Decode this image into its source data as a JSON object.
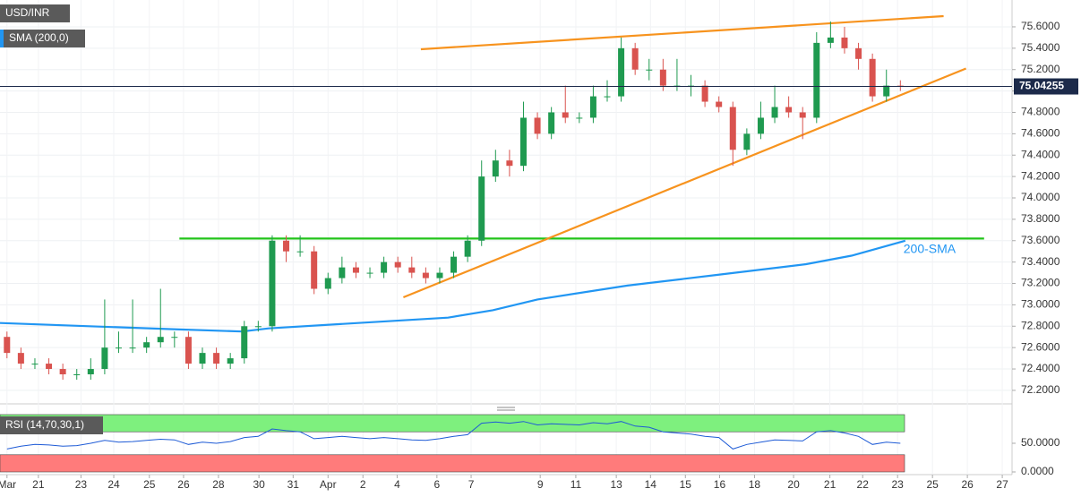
{
  "chart_data": [
    {
      "type": "candlestick",
      "title": "USD/INR",
      "indicator_label": "SMA (200,0)",
      "up_color": "#1f9a50",
      "down_color": "#d9534f",
      "candles": [
        [
          1,
          72.7,
          72.75,
          72.5,
          72.55
        ],
        [
          3,
          72.55,
          72.6,
          72.4,
          72.45
        ],
        [
          5,
          72.45,
          72.5,
          72.4,
          72.45
        ],
        [
          7,
          72.45,
          72.5,
          72.35,
          72.4
        ],
        [
          9,
          72.4,
          72.45,
          72.3,
          72.35
        ],
        [
          11,
          72.35,
          72.4,
          72.3,
          72.35
        ],
        [
          13,
          72.35,
          72.5,
          72.3,
          72.4
        ],
        [
          15,
          72.4,
          73.05,
          72.35,
          72.6
        ],
        [
          17,
          72.6,
          72.75,
          72.55,
          72.6
        ],
        [
          19,
          72.6,
          73.05,
          72.55,
          72.6
        ],
        [
          21,
          72.6,
          72.7,
          72.55,
          72.65
        ],
        [
          23,
          72.65,
          73.15,
          72.6,
          72.7
        ],
        [
          25,
          72.7,
          72.75,
          72.6,
          72.7
        ],
        [
          27,
          72.7,
          72.75,
          72.4,
          72.45
        ],
        [
          29,
          72.45,
          72.6,
          72.4,
          72.55
        ],
        [
          31,
          72.55,
          72.6,
          72.4,
          72.45
        ],
        [
          33,
          72.45,
          72.55,
          72.4,
          72.5
        ],
        [
          35,
          72.5,
          72.85,
          72.45,
          72.8
        ],
        [
          37,
          72.8,
          72.85,
          72.75,
          72.8
        ],
        [
          39,
          72.8,
          73.65,
          72.75,
          73.6
        ],
        [
          41,
          73.6,
          73.65,
          73.4,
          73.5
        ],
        [
          43,
          73.5,
          73.65,
          73.45,
          73.5
        ],
        [
          45,
          73.5,
          73.55,
          73.1,
          73.15
        ],
        [
          47,
          73.15,
          73.3,
          73.1,
          73.25
        ],
        [
          49,
          73.25,
          73.45,
          73.2,
          73.35
        ],
        [
          51,
          73.35,
          73.4,
          73.25,
          73.3
        ],
        [
          53,
          73.3,
          73.35,
          73.25,
          73.3
        ],
        [
          55,
          73.3,
          73.45,
          73.25,
          73.4
        ],
        [
          57,
          73.4,
          73.45,
          73.3,
          73.35
        ],
        [
          59,
          73.35,
          73.45,
          73.25,
          73.3
        ],
        [
          61,
          73.3,
          73.35,
          73.2,
          73.25
        ],
        [
          63,
          73.25,
          73.35,
          73.2,
          73.3
        ],
        [
          65,
          73.3,
          73.5,
          73.25,
          73.45
        ],
        [
          67,
          73.45,
          73.65,
          73.4,
          73.6
        ],
        [
          69,
          73.6,
          74.35,
          73.55,
          74.2
        ],
        [
          71,
          74.2,
          74.45,
          74.15,
          74.35
        ],
        [
          73,
          74.35,
          74.45,
          74.2,
          74.3
        ],
        [
          75,
          74.3,
          74.9,
          74.25,
          74.75
        ],
        [
          77,
          74.75,
          74.8,
          74.55,
          74.6
        ],
        [
          79,
          74.6,
          74.85,
          74.55,
          74.8
        ],
        [
          81,
          74.8,
          75.05,
          74.7,
          74.75
        ],
        [
          83,
          74.75,
          74.8,
          74.7,
          74.75
        ],
        [
          85,
          74.75,
          75.05,
          74.7,
          74.95
        ],
        [
          87,
          74.95,
          75.1,
          74.9,
          74.95
        ],
        [
          89,
          74.95,
          75.5,
          74.9,
          75.4
        ],
        [
          91,
          75.4,
          75.45,
          75.15,
          75.2
        ],
        [
          93,
          75.2,
          75.3,
          75.1,
          75.2
        ],
        [
          95,
          75.2,
          75.3,
          75.0,
          75.05
        ],
        [
          97,
          75.05,
          75.3,
          75.0,
          75.05
        ],
        [
          99,
          75.05,
          75.15,
          74.95,
          75.05
        ],
        [
          101,
          75.05,
          75.1,
          74.85,
          74.9
        ],
        [
          103,
          74.9,
          74.95,
          74.8,
          74.85
        ],
        [
          105,
          74.85,
          74.9,
          74.3,
          74.45
        ],
        [
          107,
          74.45,
          74.65,
          74.4,
          74.6
        ],
        [
          109,
          74.6,
          74.9,
          74.55,
          74.75
        ],
        [
          111,
          74.75,
          75.05,
          74.7,
          74.85
        ],
        [
          113,
          74.85,
          74.95,
          74.75,
          74.8
        ],
        [
          115,
          74.8,
          74.85,
          74.55,
          74.75
        ],
        [
          117,
          74.75,
          75.55,
          74.7,
          75.45
        ],
        [
          119,
          75.45,
          75.65,
          75.4,
          75.5
        ],
        [
          121,
          75.5,
          75.6,
          75.35,
          75.4
        ],
        [
          123,
          75.4,
          75.45,
          75.2,
          75.3
        ],
        [
          125,
          75.3,
          75.35,
          74.9,
          74.95
        ],
        [
          127,
          74.95,
          75.2,
          74.9,
          75.05
        ],
        [
          129,
          75.05,
          75.1,
          75.0,
          75.04
        ]
      ],
      "lines": [
        {
          "name": "200-SMA",
          "color": "#2196f3",
          "x": [
            0,
            12.8,
            25.7,
            34.7,
            38.5,
            51.3,
            64.2,
            70.6,
            77.0,
            89.9,
            102.7,
            115.5,
            122.0,
            129.7
          ],
          "values": [
            72.83,
            72.8,
            72.77,
            72.75,
            72.78,
            72.83,
            72.88,
            72.95,
            73.05,
            73.18,
            73.28,
            73.38,
            73.46,
            73.6
          ]
        },
        {
          "color": "#22c41a",
          "x": [
            25.7,
            141
          ],
          "values": [
            73.62,
            73.62
          ]
        },
        {
          "color": "#f7931e",
          "x": [
            60.3,
            135.2
          ],
          "values": [
            75.39,
            75.7
          ]
        },
        {
          "color": "#f7931e",
          "x": [
            57.8,
            138.4
          ],
          "values": [
            73.07,
            75.21
          ]
        }
      ],
      "last_price": 75.04255,
      "last_price_color": "#1c2a4a",
      "xlim": [
        0,
        145
      ],
      "xticks": [
        {
          "value": 1.0,
          "label": "Mar"
        },
        {
          "value": 5.5,
          "label": "21"
        },
        {
          "value": 11.6,
          "label": "23"
        },
        {
          "value": 16.3,
          "label": "24"
        },
        {
          "value": 21.4,
          "label": "25"
        },
        {
          "value": 26.3,
          "label": "26"
        },
        {
          "value": 31.3,
          "label": "28"
        },
        {
          "value": 37.1,
          "label": "30"
        },
        {
          "value": 42.0,
          "label": "31"
        },
        {
          "value": 47.0,
          "label": "Apr"
        },
        {
          "value": 52.0,
          "label": "2"
        },
        {
          "value": 56.9,
          "label": "4"
        },
        {
          "value": 62.6,
          "label": "6"
        },
        {
          "value": 67.5,
          "label": "7"
        },
        {
          "value": 77.4,
          "label": "9"
        },
        {
          "value": 82.5,
          "label": "11"
        },
        {
          "value": 88.3,
          "label": "13"
        },
        {
          "value": 93.2,
          "label": "14"
        },
        {
          "value": 98.2,
          "label": "15"
        },
        {
          "value": 103.1,
          "label": "16"
        },
        {
          "value": 108.1,
          "label": "18"
        },
        {
          "value": 113.7,
          "label": "20"
        },
        {
          "value": 118.9,
          "label": "21"
        },
        {
          "value": 123.6,
          "label": "22"
        },
        {
          "value": 128.6,
          "label": "23"
        },
        {
          "value": 133.6,
          "label": "25"
        },
        {
          "value": 138.6,
          "label": "26"
        },
        {
          "value": 143.6,
          "label": "27"
        }
      ],
      "ylim": [
        72.082,
        75.851
      ],
      "yticks": [
        {
          "value": 72.2,
          "label": "72.2000"
        },
        {
          "value": 72.4,
          "label": "72.4000"
        },
        {
          "value": 72.6,
          "label": "72.6000"
        },
        {
          "value": 72.8,
          "label": "72.8000"
        },
        {
          "value": 73.0,
          "label": "73.0000"
        },
        {
          "value": 73.2,
          "label": "73.2000"
        },
        {
          "value": 73.4,
          "label": "73.4000"
        },
        {
          "value": 73.6,
          "label": "73.6000"
        },
        {
          "value": 73.8,
          "label": "73.8000"
        },
        {
          "value": 74.0,
          "label": "74.0000"
        },
        {
          "value": 74.2,
          "label": "74.2000"
        },
        {
          "value": 74.4,
          "label": "74.4000"
        },
        {
          "value": 74.6,
          "label": "74.6000"
        },
        {
          "value": 74.8,
          "label": "74.8000"
        },
        {
          "value": 75.0,
          "label": "75.0000"
        },
        {
          "value": 75.2,
          "label": "75.2000"
        },
        {
          "value": 75.4,
          "label": "75.4000"
        },
        {
          "value": 75.6,
          "label": "75.6000"
        }
      ],
      "grid": true
    },
    {
      "type": "rsi",
      "title": "RSI (14,70,30,1)",
      "color": "#1e5bd6",
      "x": [
        1,
        3,
        5,
        7,
        9,
        11,
        13,
        15,
        17,
        19,
        21,
        23,
        25,
        27,
        29,
        31,
        33,
        35,
        37,
        39,
        41,
        43,
        45,
        47,
        49,
        51,
        53,
        55,
        57,
        59,
        61,
        63,
        65,
        67,
        69,
        71,
        73,
        75,
        77,
        79,
        81,
        83,
        85,
        87,
        89,
        91,
        93,
        95,
        97,
        99,
        101,
        103,
        105,
        107,
        109,
        111,
        113,
        115,
        117,
        119,
        121,
        123,
        125,
        127,
        129
      ],
      "values": [
        40,
        45,
        48,
        47,
        45,
        46,
        50,
        55,
        52,
        53,
        55,
        57,
        56,
        48,
        52,
        50,
        53,
        60,
        62,
        75,
        72,
        70,
        58,
        60,
        62,
        60,
        58,
        60,
        58,
        56,
        55,
        58,
        62,
        65,
        85,
        87,
        85,
        88,
        82,
        84,
        83,
        82,
        86,
        84,
        88,
        80,
        78,
        70,
        68,
        66,
        62,
        60,
        40,
        48,
        52,
        56,
        55,
        54,
        70,
        72,
        68,
        62,
        48,
        52,
        50
      ],
      "bands": [
        {
          "range": [
            70,
            100
          ],
          "color": "#7ef07e"
        },
        {
          "range": [
            0,
            30
          ],
          "color": "#ff7b7b"
        }
      ],
      "xlim": [
        0,
        145
      ],
      "ylim": [
        -4.7,
        112.5
      ],
      "yticks": [
        {
          "value": 50,
          "label": "50.0000"
        },
        {
          "value": 0,
          "label": "0.0000"
        }
      ]
    }
  ]
}
